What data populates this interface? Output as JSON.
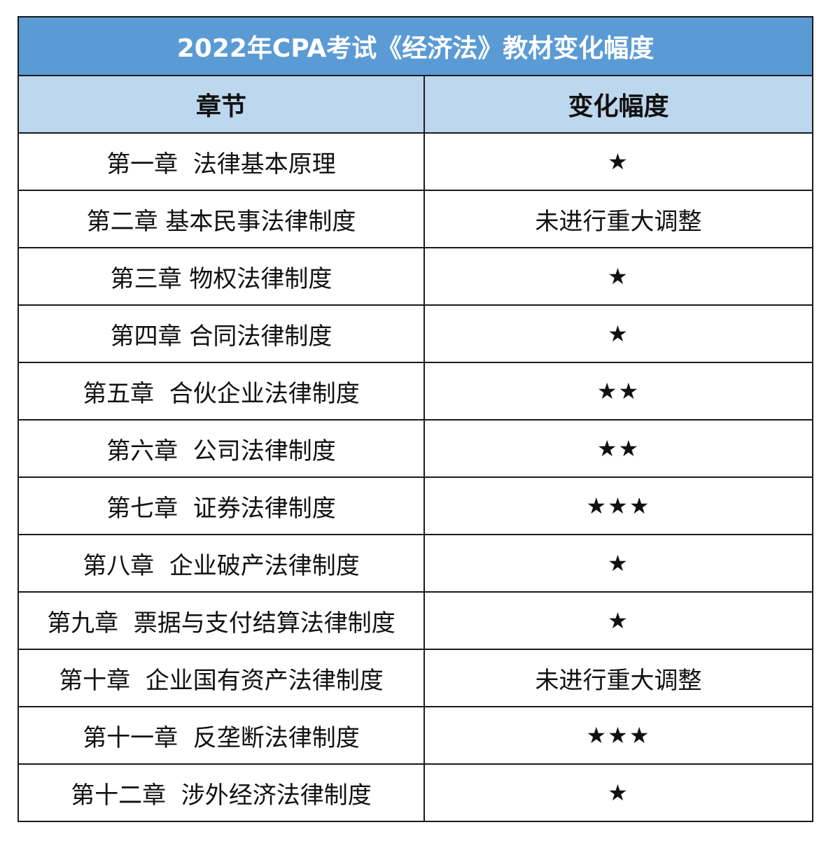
{
  "title": "2022年CPA考试《经济法》教材变化幅度",
  "headers": {
    "chapter": "章节",
    "change": "变化幅度"
  },
  "rows": [
    {
      "chapter": "第一章  法律基本原理",
      "change": "★"
    },
    {
      "chapter": "第二章 基本民事法律制度",
      "change": "未进行重大调整"
    },
    {
      "chapter": "第三章 物权法律制度",
      "change": "★"
    },
    {
      "chapter": "第四章 合同法律制度",
      "change": "★"
    },
    {
      "chapter": "第五章  合伙企业法律制度",
      "change": "★★"
    },
    {
      "chapter": "第六章  公司法律制度",
      "change": "★★"
    },
    {
      "chapter": "第七章  证券法律制度",
      "change": "★★★"
    },
    {
      "chapter": "第八章  企业破产法律制度",
      "change": "★"
    },
    {
      "chapter": "第九章  票据与支付结算法律制度",
      "change": "★"
    },
    {
      "chapter": "第十章  企业国有资产法律制度",
      "change": "未进行重大调整"
    },
    {
      "chapter": "第十一章  反垄断法律制度",
      "change": "★★★"
    },
    {
      "chapter": "第十二章  涉外经济法律制度",
      "change": "★"
    }
  ],
  "colors": {
    "title_bg": "#5b9bd5",
    "header_bg": "#bdd7ee"
  }
}
